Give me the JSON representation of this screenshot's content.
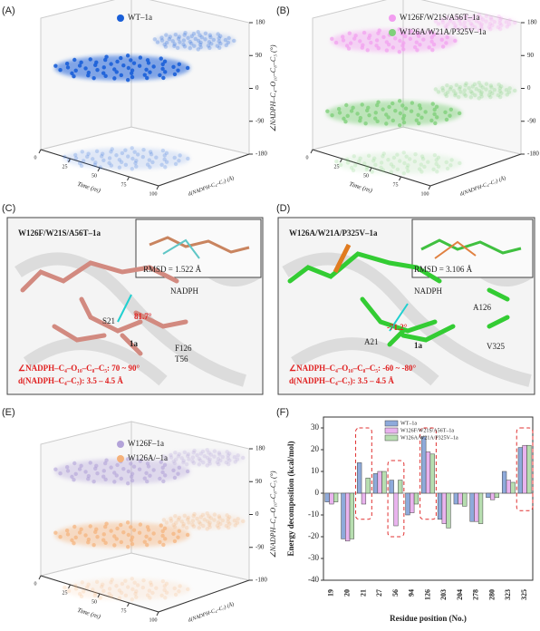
{
  "axes3d": {
    "xlabel": "Time (ns)",
    "ylabel": "d(NADPH-C₄–C₇) (Å)",
    "zlabel": "∠NADPH–C₄–O₁₀–C₈–C₅ (°)",
    "zticks": [
      180,
      90,
      0,
      -90,
      -180
    ],
    "time_ticks": [
      0,
      25,
      50,
      75,
      100
    ]
  },
  "panels": {
    "A": {
      "label": "(A)",
      "legend": [
        {
          "name": "WT–1a",
          "color": "#1a5fd8"
        }
      ]
    },
    "B": {
      "label": "(B)",
      "legend": [
        {
          "name": "W126F/W21S/A56T–1a",
          "color": "#f29ef0"
        },
        {
          "name": "W126A/W21A/P325V–1a",
          "color": "#7fd07a"
        }
      ]
    },
    "C": {
      "label": "(C)",
      "title": "W126F/W21S/A56T–1a",
      "rmsd": "RMSD = 1.522 Å",
      "labels": [
        "NADPH",
        "S21",
        "F126",
        "1a",
        "T56"
      ],
      "angle": "81.7°",
      "note1": "∠NADPH–C₄–O₁₀–C₈–C₅: 70 ~ 90°",
      "note2": "d(NADPH–C₄–C₇): 3.5 – 4.5 Å"
    },
    "D": {
      "label": "(D)",
      "title": "W126A/W21A/P325V–1a",
      "rmsd": "RMSD = 3.106 Å",
      "labels": [
        "NADPH",
        "A126",
        "V325",
        "A21",
        "1a"
      ],
      "angle": "-71.2°",
      "note1": "∠NADPH–C₄–O₁₀–C₈–C₅: -60 ~ -80°",
      "note2": "d(NADPH–C₄–C₇): 3.5 – 4.5 Å"
    },
    "E": {
      "label": "(E)",
      "legend": [
        {
          "name": "W126F–1a",
          "color": "#b3a3d9"
        },
        {
          "name": "W126A/–1a",
          "color": "#f5b27a"
        }
      ]
    },
    "F": {
      "label": "(F)"
    }
  },
  "chart_data": {
    "type": "bar",
    "xlabel": "Residue position (No.)",
    "ylabel": "Energy decomposition (kcal/mol)",
    "categories": [
      "19",
      "20",
      "21",
      "27",
      "56",
      "94",
      "126",
      "203",
      "204",
      "278",
      "280",
      "323",
      "325"
    ],
    "series": [
      {
        "name": "WT–1a",
        "color": "#8eaadb",
        "values": [
          -4,
          -21,
          14,
          9,
          6,
          -10,
          26,
          -12,
          -5,
          -13,
          -2,
          10,
          21
        ]
      },
      {
        "name": "W126F/W21S/A56T–1a",
        "color": "#e9b3ee",
        "values": [
          -5,
          -22,
          -5,
          10,
          -15,
          -9,
          19,
          -14,
          -5,
          -13,
          -3,
          6,
          22
        ]
      },
      {
        "name": "W126A/W21A/P325V–1a",
        "color": "#b7deb0",
        "values": [
          -4,
          -21,
          7,
          10,
          6,
          -5,
          18,
          -16,
          -6,
          -14,
          -2,
          5,
          22
        ]
      }
    ],
    "ylim": [
      -40,
      35
    ],
    "yticks": [
      -40,
      -30,
      -20,
      -10,
      0,
      10,
      20,
      30
    ]
  }
}
